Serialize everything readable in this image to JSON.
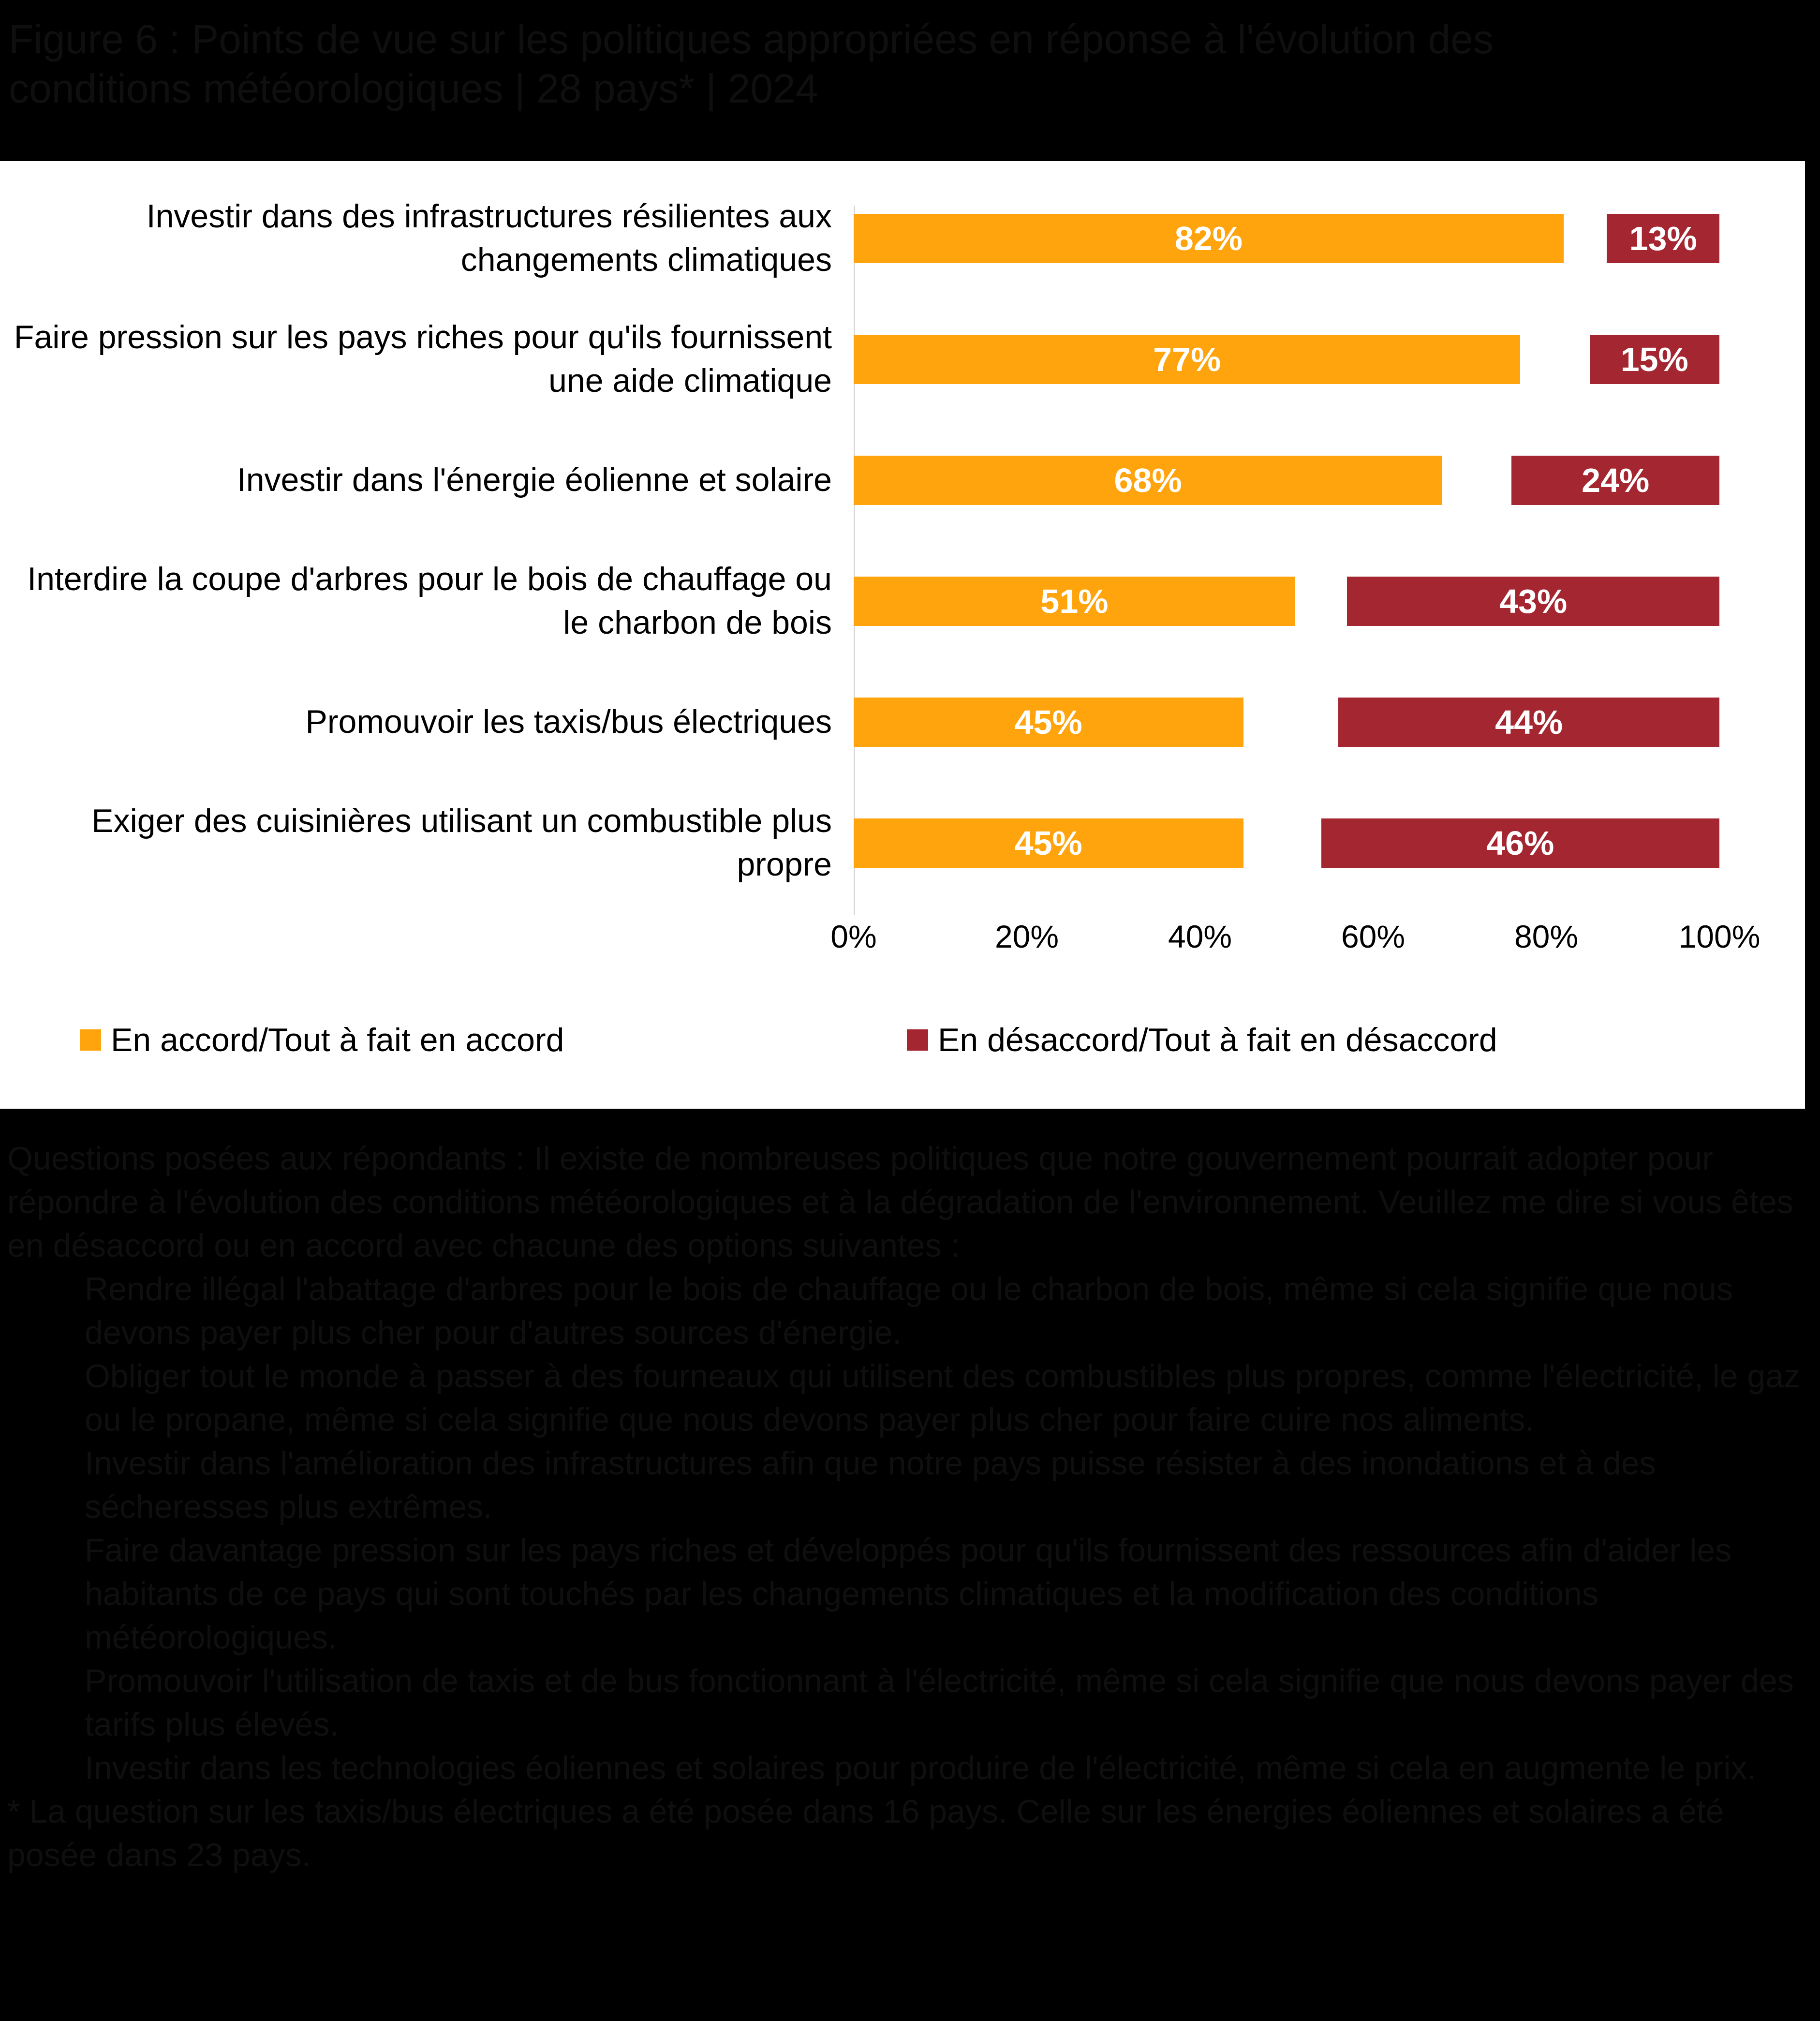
{
  "title": {
    "line1": "Figure 6 : Points de vue sur les politiques appropriées en réponse à l'évolution des",
    "line2": "conditions météorologiques | 28 pays* | 2024"
  },
  "chart_data": {
    "type": "bar",
    "orientation": "horizontal",
    "title": "Figure 6 : Points de vue sur les politiques appropriées en réponse à l'évolution des conditions météorologiques | 28 pays* | 2024",
    "categories": [
      "Investir dans des infrastructures résilientes aux changements climatiques",
      "Faire pression sur les pays riches pour qu'ils fournissent une aide climatique",
      "Investir dans l'énergie éolienne et solaire",
      "Interdire la coupe d'arbres pour le bois de chauffage ou le charbon de bois",
      "Promouvoir les taxis/bus électriques",
      "Exiger des cuisinières utilisant un combustible plus propre"
    ],
    "series": [
      {
        "name": "En accord/Tout à fait en accord",
        "color": "#FFA40C",
        "anchor": "left",
        "values": [
          82,
          77,
          68,
          51,
          45,
          45
        ]
      },
      {
        "name": "En désaccord/Tout à fait en désaccord",
        "color": "#A42631",
        "anchor": "right",
        "values": [
          13,
          15,
          24,
          43,
          44,
          46
        ]
      }
    ],
    "value_label_format": "{value}%",
    "xlim": [
      0,
      100
    ],
    "x_ticks": [
      "0%",
      "20%",
      "40%",
      "60%",
      "80%",
      "100%"
    ],
    "grid": "off",
    "legend_position": "bottom"
  },
  "colors": {
    "agree": "#FFA40C",
    "disagree": "#A42631",
    "axis": "#D9D9D9",
    "card_background": "#FFFFFF",
    "page_background": "#000000",
    "hidden_text": "#0F0F0F"
  },
  "footnote": {
    "intro": "Questions posées aux répondants : Il existe de nombreuses politiques que notre gouvernement pourrait adopter pour répondre à l'évolution des conditions météorologiques et à la dégradation de l'environnement. Veuillez me dire si vous êtes en désaccord ou en accord avec chacune des options suivantes :",
    "items": [
      "Rendre illégal l'abattage d'arbres pour le bois de chauffage ou le charbon de bois, même si cela signifie que nous devons payer plus cher pour d'autres sources d'énergie.",
      "Obliger tout le monde à passer à des fourneaux qui utilisent des combustibles plus propres, comme l'électricité, le gaz ou le propane, même si cela signifie que nous devons payer plus cher pour faire cuire nos aliments.",
      "Investir dans l'amélioration des infrastructures afin que notre pays puisse résister à des inondations et à des sécheresses plus extrêmes.",
      "Faire davantage pression sur les pays riches et développés pour qu'ils fournissent des ressources afin d'aider les habitants de ce pays qui sont touchés par les changements climatiques et la modification des conditions météorologiques.",
      "Promouvoir l'utilisation de taxis et de bus fonctionnant à l'électricité, même si cela signifie que nous devons payer des tarifs plus élevés.",
      "Investir dans les technologies éoliennes et solaires pour produire de l'électricité, même si cela en augmente le prix."
    ],
    "note": "* La question sur les taxis/bus électriques a été posée dans 16 pays. Celle sur les énergies éoliennes et solaires a été posée dans 23 pays."
  }
}
